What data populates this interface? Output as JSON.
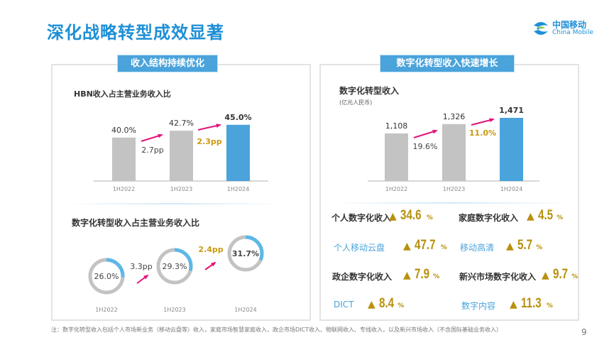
{
  "title": "深化战略转型成效显著",
  "logo": {
    "cn": "中国移动",
    "en": "China Mobile"
  },
  "left_panel": {
    "header": "收入结构持续优化",
    "hbn": {
      "subtitle": "HBN收入占主营业务收入比"
    },
    "digital_ratio": {
      "subtitle": "数字化转型收入占主营业务收入比"
    }
  },
  "right_panel": {
    "header": "数字化转型收入快速增长",
    "chart": {
      "subtitle": "数字化转型收入",
      "unit": "(亿元人民币)"
    },
    "metrics": [
      {
        "label": "个人数字化收入",
        "value": "34.6",
        "unit": "%"
      },
      {
        "label": "家庭数字化收入",
        "value": "4.5",
        "unit": "%"
      },
      {
        "label": "个人移动云盘",
        "value": "47.7",
        "unit": "%"
      },
      {
        "label": "移动高清",
        "value": "5.7",
        "unit": "%"
      },
      {
        "label": "政企数字化收入",
        "value": "7.9",
        "unit": "%"
      },
      {
        "label": "新兴市场数字化收入",
        "value": "9.7",
        "unit": "%"
      },
      {
        "label": "DICT",
        "value": "8.4",
        "unit": "%"
      },
      {
        "label": "数字内容",
        "value": "11.3",
        "unit": "%"
      }
    ],
    "up_icon": "triangle-up"
  },
  "footnote": "注：数字化转型收入包括个人市场新业务（移动云盘等）收入，家庭市场智慧家庭收入，政企市场DICT收入、物联网收入、专线收入，以及新兴市场收入（不含国际基础业务收入）",
  "page_number": "9",
  "colors": {
    "accent": "#1e8fd6",
    "bar_gray": "#c3c3c3",
    "bar_blue": "#4aa3da",
    "arrow": "#e3137a",
    "gold": "#c89a12"
  },
  "chart_data": [
    {
      "type": "bar",
      "categories": [
        "1H2022",
        "1H2023",
        "1H2024"
      ],
      "values": [
        40.0,
        42.7,
        45.0
      ],
      "labels": [
        "40.0%",
        "42.7%",
        "45.0%"
      ],
      "changes": [
        "2.7pp",
        "2.3pp"
      ],
      "title": "HBN收入占主营业务收入比"
    },
    {
      "type": "pie",
      "categories": [
        "1H2022",
        "1H2023",
        "1H2024"
      ],
      "values": [
        26.0,
        29.3,
        31.7
      ],
      "labels": [
        "26.0%",
        "29.3%",
        "31.7%"
      ],
      "changes": [
        "3.3pp",
        "2.4pp"
      ],
      "title": "数字化转型收入占主营业务收入比"
    },
    {
      "type": "bar",
      "categories": [
        "1H2022",
        "1H2023",
        "1H2024"
      ],
      "values": [
        1108,
        1326,
        1471
      ],
      "labels": [
        "1,108",
        "1,326",
        "1,471"
      ],
      "changes": [
        "19.6%",
        "11.0%"
      ],
      "title": "数字化转型收入",
      "ylabel": "(亿元人民币)"
    }
  ]
}
